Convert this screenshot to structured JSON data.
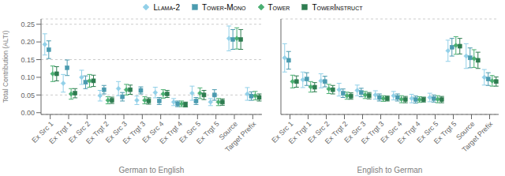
{
  "chart_data": [
    {
      "type": "scatter",
      "xlabel": "German to English",
      "ylabel": "Total Contribution (ALTI)",
      "categories": [
        "Ex Src 1",
        "Ex Trgt 1",
        "Ex Src 2",
        "Ex Trgt 2",
        "Ex Src 3",
        "Ex Trgt 3",
        "Ex Src 4",
        "Ex Trgt 4",
        "Ex Src 5",
        "Ex Trgt 5",
        "Source",
        "Target Prefix"
      ],
      "series": [
        {
          "name": "Llama-2",
          "color": "#92D0E8",
          "marker": "diamond",
          "values": [
            0.193,
            0.083,
            0.1,
            0.048,
            0.068,
            0.035,
            0.057,
            0.03,
            0.055,
            0.03,
            0.21,
            0.053
          ],
          "errors": [
            0.03,
            0.025,
            0.02,
            0.015,
            0.02,
            0.012,
            0.015,
            0.01,
            0.02,
            0.01,
            0.035,
            0.018
          ]
        },
        {
          "name": "Tower-Mono",
          "color": "#4B9BAF",
          "marker": "square",
          "values": [
            0.178,
            0.127,
            0.086,
            0.065,
            0.045,
            0.063,
            0.033,
            0.025,
            0.033,
            0.05,
            0.207,
            0.047
          ],
          "errors": [
            0.025,
            0.022,
            0.018,
            0.012,
            0.012,
            0.01,
            0.01,
            0.008,
            0.01,
            0.015,
            0.028,
            0.012
          ]
        },
        {
          "name": "Tower",
          "color": "#4BAF72",
          "marker": "diamond",
          "values": [
            0.11,
            0.053,
            0.09,
            0.035,
            0.065,
            0.035,
            0.053,
            0.025,
            0.055,
            0.03,
            0.21,
            0.048
          ],
          "errors": [
            0.022,
            0.015,
            0.018,
            0.01,
            0.015,
            0.01,
            0.012,
            0.008,
            0.015,
            0.01,
            0.03,
            0.012
          ]
        },
        {
          "name": "TowerInstruct",
          "color": "#2E7D50",
          "marker": "square",
          "values": [
            0.11,
            0.055,
            0.09,
            0.035,
            0.065,
            0.033,
            0.053,
            0.023,
            0.05,
            0.03,
            0.207,
            0.043
          ],
          "errors": [
            0.02,
            0.013,
            0.016,
            0.009,
            0.013,
            0.009,
            0.01,
            0.007,
            0.013,
            0.009,
            0.028,
            0.01
          ]
        }
      ],
      "ylim": [
        -0.005,
        0.265
      ],
      "yticks": [
        {
          "value": 0.0,
          "label": "0.00"
        },
        {
          "value": 0.05,
          "label": "0.05"
        },
        {
          "value": 0.1,
          "label": "0.10"
        },
        {
          "value": 0.15,
          "label": "0.15"
        },
        {
          "value": 0.2,
          "label": "0.20"
        },
        {
          "value": 0.25,
          "label": "0.25"
        }
      ],
      "grid": true,
      "legend": "top"
    },
    {
      "type": "scatter",
      "xlabel": "English to German",
      "categories": [
        "Ex Src 1",
        "Ex Trgt 1",
        "Ex Src 2",
        "Ex Trgt 2",
        "Ex Src 3",
        "Ex Trgt 3",
        "Ex Src 4",
        "Ex Trgt 4",
        "Ex Src 5",
        "Ex Trgt 5",
        "Source",
        "Target Prefix"
      ],
      "series": [
        {
          "name": "Llama-2",
          "color": "#92D0E8",
          "marker": "diamond",
          "values": [
            0.155,
            0.093,
            0.09,
            0.065,
            0.063,
            0.05,
            0.048,
            0.04,
            0.043,
            0.175,
            0.16,
            0.1
          ],
          "errors": [
            0.04,
            0.022,
            0.02,
            0.018,
            0.015,
            0.012,
            0.012,
            0.012,
            0.012,
            0.03,
            0.035,
            0.022
          ]
        },
        {
          "name": "Tower-Mono",
          "color": "#4B9BAF",
          "marker": "square",
          "values": [
            0.148,
            0.095,
            0.088,
            0.055,
            0.057,
            0.043,
            0.043,
            0.037,
            0.04,
            0.185,
            0.155,
            0.095
          ],
          "errors": [
            0.025,
            0.018,
            0.015,
            0.012,
            0.012,
            0.01,
            0.01,
            0.01,
            0.01,
            0.025,
            0.028,
            0.018
          ]
        },
        {
          "name": "Tower",
          "color": "#4BAF72",
          "marker": "diamond",
          "values": [
            0.088,
            0.073,
            0.067,
            0.048,
            0.05,
            0.04,
            0.038,
            0.037,
            0.038,
            0.19,
            0.153,
            0.09
          ],
          "errors": [
            0.018,
            0.015,
            0.013,
            0.01,
            0.01,
            0.008,
            0.01,
            0.008,
            0.01,
            0.025,
            0.025,
            0.015
          ]
        },
        {
          "name": "TowerInstruct",
          "color": "#2E7D50",
          "marker": "square",
          "values": [
            0.088,
            0.072,
            0.065,
            0.047,
            0.048,
            0.04,
            0.037,
            0.037,
            0.037,
            0.188,
            0.148,
            0.088
          ],
          "errors": [
            0.016,
            0.013,
            0.012,
            0.009,
            0.009,
            0.007,
            0.009,
            0.007,
            0.009,
            0.022,
            0.023,
            0.013
          ]
        }
      ],
      "ylim": [
        -0.005,
        0.265
      ],
      "yticks": [
        {
          "value": 0.0,
          "label": "0.00"
        },
        {
          "value": 0.05,
          "label": "0.05"
        },
        {
          "value": 0.1,
          "label": "0.10"
        },
        {
          "value": 0.15,
          "label": "0.15"
        },
        {
          "value": 0.2,
          "label": "0.20"
        },
        {
          "value": 0.25,
          "label": "0.25"
        }
      ],
      "grid": true,
      "tick_labels": "x"
    }
  ]
}
